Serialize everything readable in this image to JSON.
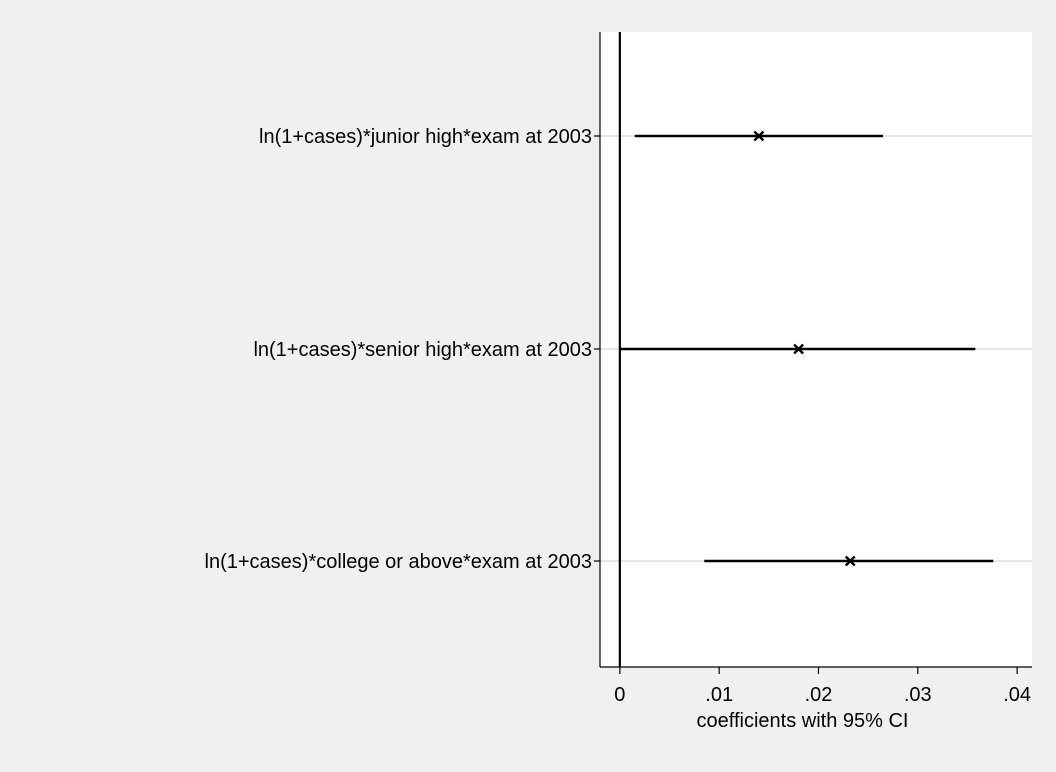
{
  "colors": {
    "background": "#f0f0f0",
    "plot_background": "#ffffff",
    "gridline": "#e6e6e6",
    "ink": "#000000"
  },
  "chart_data": {
    "type": "coefficient-plot",
    "title": "",
    "xlabel": "coefficients with 95% CI",
    "ylabel": "",
    "xlim": [
      -0.002,
      0.0415
    ],
    "x_ticks": [
      0,
      0.01,
      0.02,
      0.03,
      0.04
    ],
    "x_tick_labels": [
      "0",
      ".01",
      ".02",
      ".03",
      ".04"
    ],
    "reference_line": 0,
    "grid": true,
    "legend": "none",
    "marker": "x",
    "categories": [
      "ln(1+cases)*junior high*exam at 2003",
      "ln(1+cases)*senior high*exam at 2003",
      "ln(1+cases)*college or above*exam at 2003"
    ],
    "estimates": [
      0.014,
      0.018,
      0.0232
    ],
    "ci_low": [
      0.0015,
      0.0,
      0.0085
    ],
    "ci_high": [
      0.0265,
      0.0358,
      0.0376
    ]
  }
}
